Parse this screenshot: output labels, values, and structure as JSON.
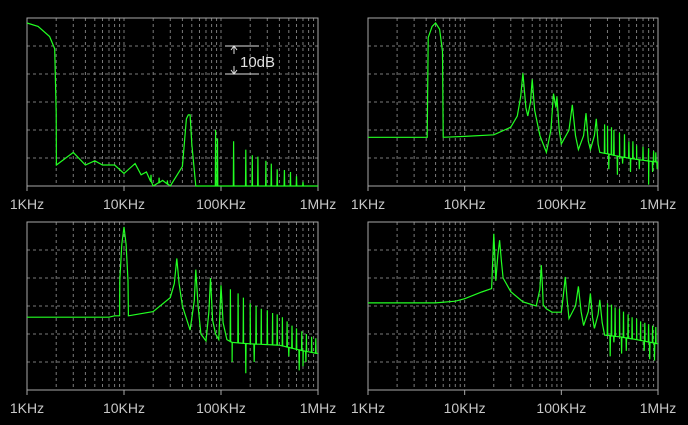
{
  "chart_data": [
    {
      "type": "line",
      "xscale": "log",
      "xlim_khz": [
        1,
        1000
      ],
      "ylim_db": [
        -60,
        0
      ],
      "grid": true,
      "x_tick_labels": [
        "1KHz",
        "10KHz",
        "100KHz",
        "1MHz"
      ],
      "annotation": "10dB",
      "color": "#22ff22",
      "base": [
        [
          1,
          -1.8
        ],
        [
          1.3,
          -3
        ],
        [
          1.71,
          -6.6
        ],
        [
          1.93,
          -11
        ],
        [
          2.0,
          -34
        ],
        [
          2.01,
          -52.5
        ],
        [
          3,
          -48
        ],
        [
          4,
          -52.5
        ],
        [
          5,
          -51
        ],
        [
          6,
          -52.5
        ],
        [
          8,
          -52.5
        ],
        [
          10,
          -55.5
        ],
        [
          13,
          -52
        ],
        [
          15,
          -56
        ],
        [
          17,
          -55
        ],
        [
          20,
          -60
        ],
        [
          25,
          -58
        ],
        [
          30,
          -60
        ],
        [
          40,
          -53
        ],
        [
          44,
          -36
        ],
        [
          46,
          -34.6
        ],
        [
          48,
          -34.6
        ],
        [
          50,
          -45
        ],
        [
          55,
          -60
        ],
        [
          1000,
          -60
        ]
      ],
      "spikes": [
        [
          19,
          -56
        ],
        [
          23,
          -57
        ],
        [
          28,
          -58
        ],
        [
          88,
          -40
        ],
        [
          92,
          -43
        ],
        [
          135,
          -44
        ],
        [
          180,
          -47
        ],
        [
          210,
          -49
        ],
        [
          240,
          -49.5
        ],
        [
          290,
          -51
        ],
        [
          330,
          -52
        ],
        [
          380,
          -54
        ],
        [
          450,
          -54.3
        ],
        [
          520,
          -55
        ],
        [
          600,
          -56.5
        ],
        [
          700,
          -58.5
        ]
      ]
    },
    {
      "type": "line",
      "xscale": "log",
      "xlim_khz": [
        1,
        1000
      ],
      "ylim_db": [
        -60,
        0
      ],
      "grid": true,
      "x_tick_labels": [
        "1KHz",
        "10KHz",
        "100KHz",
        "1MHz"
      ],
      "color": "#22ff22",
      "base": [
        [
          1,
          -42.6
        ],
        [
          4.1,
          -42.6
        ],
        [
          4.2,
          -7
        ],
        [
          4.6,
          -3
        ],
        [
          5,
          -1.8
        ],
        [
          5.5,
          -4
        ],
        [
          5.9,
          -12
        ],
        [
          6,
          -42.6
        ],
        [
          10,
          -42.3
        ],
        [
          20,
          -41.7
        ],
        [
          30,
          -39
        ],
        [
          35,
          -35
        ],
        [
          38,
          -28
        ],
        [
          40,
          -19.7
        ],
        [
          43,
          -32
        ],
        [
          45,
          -35
        ],
        [
          48,
          -30
        ],
        [
          50,
          -21.9
        ],
        [
          53,
          -33
        ],
        [
          60,
          -42
        ],
        [
          70,
          -48
        ],
        [
          78,
          -40
        ],
        [
          83,
          -27
        ],
        [
          88,
          -32
        ],
        [
          90,
          -28
        ],
        [
          95,
          -40
        ],
        [
          100,
          -45
        ],
        [
          120,
          -40
        ],
        [
          130,
          -31
        ],
        [
          140,
          -42
        ],
        [
          150,
          -47
        ],
        [
          170,
          -42
        ],
        [
          180,
          -34
        ],
        [
          190,
          -44
        ],
        [
          200,
          -47
        ],
        [
          220,
          -42
        ],
        [
          230,
          -36
        ],
        [
          240,
          -45
        ],
        [
          250,
          -48
        ],
        [
          300,
          -48.5
        ],
        [
          400,
          -49.5
        ],
        [
          600,
          -50.5
        ],
        [
          1000,
          -51.5
        ]
      ],
      "spikes": [
        [
          280,
          -38
        ],
        [
          300,
          -38.5
        ],
        [
          330,
          -39
        ],
        [
          350,
          -40
        ],
        [
          400,
          -41
        ],
        [
          450,
          -41.5
        ],
        [
          500,
          -44
        ],
        [
          550,
          -44
        ],
        [
          600,
          -45.5
        ],
        [
          700,
          -46
        ],
        [
          800,
          -46.5
        ],
        [
          900,
          -47.5
        ],
        [
          950,
          -48
        ]
      ],
      "dips": [
        [
          310,
          -54
        ],
        [
          380,
          -56
        ],
        [
          430,
          -52
        ],
        [
          520,
          -55
        ],
        [
          640,
          -54
        ],
        [
          800,
          -59.5
        ],
        [
          880,
          -55
        ],
        [
          980,
          -54
        ]
      ]
    },
    {
      "type": "line",
      "xscale": "log",
      "xlim_khz": [
        1,
        1000
      ],
      "ylim_db": [
        -60,
        0
      ],
      "grid": true,
      "x_tick_labels": [
        "1KHz",
        "10KHz",
        "100KHz",
        "1MHz"
      ],
      "color": "#22ff22",
      "base": [
        [
          1,
          -34
        ],
        [
          7,
          -34
        ],
        [
          8,
          -33.5
        ],
        [
          9,
          -33.5
        ],
        [
          9.05,
          -20.8
        ],
        [
          9.5,
          -8
        ],
        [
          10,
          -1.8
        ],
        [
          10.5,
          -8
        ],
        [
          11,
          -21
        ],
        [
          11.1,
          -33.5
        ],
        [
          20,
          -32
        ],
        [
          30,
          -27
        ],
        [
          33,
          -22
        ],
        [
          35,
          -13
        ],
        [
          37,
          -22
        ],
        [
          40,
          -30
        ],
        [
          48,
          -38.6
        ],
        [
          53,
          -28
        ],
        [
          55,
          -17
        ],
        [
          58,
          -30
        ],
        [
          62,
          -40
        ],
        [
          70,
          -42.5
        ],
        [
          75,
          -32
        ],
        [
          78,
          -20
        ],
        [
          82,
          -35
        ],
        [
          88,
          -40
        ],
        [
          95,
          -42
        ],
        [
          100,
          -22.6
        ],
        [
          105,
          -36
        ],
        [
          115,
          -42
        ],
        [
          130,
          -43
        ],
        [
          200,
          -43.5
        ],
        [
          400,
          -44
        ],
        [
          700,
          -46
        ],
        [
          1000,
          -47
        ]
      ],
      "spikes": [
        [
          125,
          -24
        ],
        [
          150,
          -25.5
        ],
        [
          170,
          -27
        ],
        [
          200,
          -29
        ],
        [
          230,
          -30
        ],
        [
          260,
          -31
        ],
        [
          300,
          -31.5
        ],
        [
          340,
          -32.5
        ],
        [
          380,
          -33
        ],
        [
          430,
          -34
        ],
        [
          480,
          -35.5
        ],
        [
          540,
          -37
        ],
        [
          600,
          -38
        ],
        [
          680,
          -39
        ],
        [
          760,
          -40
        ],
        [
          860,
          -41
        ],
        [
          950,
          -41.5
        ]
      ],
      "dips": [
        [
          130,
          -50
        ],
        [
          180,
          -54
        ],
        [
          220,
          -50
        ],
        [
          500,
          -48
        ],
        [
          640,
          -53
        ],
        [
          700,
          -51.5
        ],
        [
          750,
          -50
        ]
      ]
    },
    {
      "type": "line",
      "xscale": "log",
      "xlim_khz": [
        1,
        1000
      ],
      "ylim_db": [
        -60,
        0
      ],
      "grid": true,
      "x_tick_labels": [
        "1KHz",
        "10KHz",
        "100KHz",
        "1MHz"
      ],
      "color": "#22ff22",
      "base": [
        [
          1,
          -28.9
        ],
        [
          5,
          -28.9
        ],
        [
          8,
          -28.3
        ],
        [
          10,
          -27.4
        ],
        [
          15,
          -25
        ],
        [
          19,
          -23.8
        ],
        [
          20,
          -4.2
        ],
        [
          20.5,
          -12
        ],
        [
          21,
          -21
        ],
        [
          22,
          -12
        ],
        [
          23,
          -6.5
        ],
        [
          24,
          -14
        ],
        [
          25,
          -20
        ],
        [
          30,
          -24.9
        ],
        [
          40,
          -28.5
        ],
        [
          55,
          -30
        ],
        [
          60,
          -24
        ],
        [
          62,
          -15.4
        ],
        [
          64,
          -24
        ],
        [
          65,
          -29.6
        ],
        [
          70,
          -31
        ],
        [
          80,
          -32.2
        ],
        [
          100,
          -32.2
        ],
        [
          105,
          -26
        ],
        [
          110,
          -19.6
        ],
        [
          115,
          -28
        ],
        [
          120,
          -34.5
        ],
        [
          140,
          -30
        ],
        [
          150,
          -23
        ],
        [
          160,
          -32
        ],
        [
          170,
          -37
        ],
        [
          190,
          -32
        ],
        [
          200,
          -25.5
        ],
        [
          210,
          -34
        ],
        [
          220,
          -38
        ],
        [
          240,
          -33
        ],
        [
          250,
          -27.8
        ],
        [
          265,
          -36
        ],
        [
          280,
          -40.4
        ],
        [
          400,
          -41
        ],
        [
          600,
          -42
        ],
        [
          1000,
          -43.5
        ]
      ],
      "spikes": [
        [
          300,
          -29
        ],
        [
          330,
          -29.5
        ],
        [
          360,
          -30.5
        ],
        [
          400,
          -31
        ],
        [
          440,
          -32
        ],
        [
          490,
          -33
        ],
        [
          540,
          -34
        ],
        [
          600,
          -34.5
        ],
        [
          660,
          -35.5
        ],
        [
          730,
          -36
        ],
        [
          800,
          -36.5
        ],
        [
          880,
          -37
        ],
        [
          950,
          -37.5
        ]
      ],
      "dips": [
        [
          320,
          -48
        ],
        [
          350,
          -43
        ],
        [
          420,
          -47
        ],
        [
          470,
          -46
        ],
        [
          720,
          -46
        ],
        [
          820,
          -49
        ],
        [
          920,
          -49.5
        ]
      ]
    }
  ]
}
